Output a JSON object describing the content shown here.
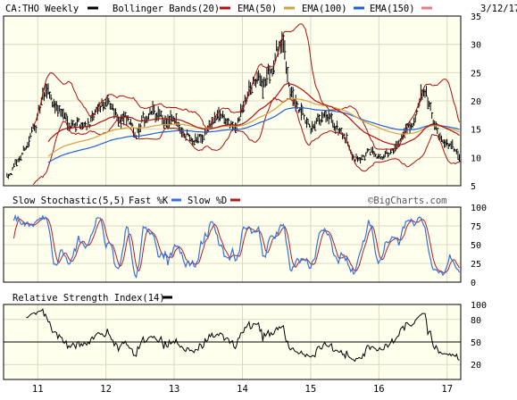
{
  "header": {
    "symbol_label": "CA:THO Weekly",
    "date": "3/12/17",
    "legend": [
      {
        "label": "Bollinger Bands(20)",
        "color": "#000000"
      },
      {
        "label": "EMA(50)",
        "color": "#b01010"
      },
      {
        "label": "EMA(100)",
        "color": "#d7a040"
      },
      {
        "label": "EMA(150)",
        "color": "#2060d0"
      }
    ],
    "legend_tail_color": "#e08080"
  },
  "colors": {
    "panel_bg": "#ffffee",
    "grid": "#d9d9c0",
    "price_bars": "#000000",
    "bollinger": "#aa1010",
    "ema50": "#b01010",
    "ema100": "#d7a040",
    "ema150": "#2060d0",
    "stoch_fast": "#3a6fd8",
    "stoch_slow": "#aa2020",
    "rsi": "#000000"
  },
  "chart_data": [
    {
      "type": "line",
      "title": "CA:THO Weekly",
      "ylim": [
        5,
        35
      ],
      "yticks": [
        5,
        10,
        15,
        20,
        25,
        30,
        35
      ],
      "x_ticks": [
        "11",
        "12",
        "13",
        "14",
        "15",
        "16",
        "17"
      ],
      "grid": true,
      "x_range": [
        2010.5,
        2017.2
      ],
      "price_anchors": [
        [
          2010.55,
          7.0
        ],
        [
          2010.7,
          9.0
        ],
        [
          2010.85,
          12.5
        ],
        [
          2010.95,
          15.5
        ],
        [
          2011.05,
          19.0
        ],
        [
          2011.15,
          21.5
        ],
        [
          2011.25,
          19.5
        ],
        [
          2011.35,
          18.0
        ],
        [
          2011.45,
          16.5
        ],
        [
          2011.55,
          17.0
        ],
        [
          2011.65,
          16.0
        ],
        [
          2011.75,
          16.5
        ],
        [
          2011.85,
          17.0
        ],
        [
          2011.95,
          19.0
        ],
        [
          2012.1,
          18.5
        ],
        [
          2012.25,
          17.0
        ],
        [
          2012.35,
          15.5
        ],
        [
          2012.45,
          14.5
        ],
        [
          2012.6,
          17.0
        ],
        [
          2012.7,
          18.0
        ],
        [
          2012.8,
          16.5
        ],
        [
          2012.95,
          16.0
        ],
        [
          2013.05,
          15.0
        ],
        [
          2013.2,
          14.5
        ],
        [
          2013.35,
          14.0
        ],
        [
          2013.5,
          15.5
        ],
        [
          2013.7,
          17.5
        ],
        [
          2013.85,
          15.0
        ],
        [
          2013.95,
          16.5
        ],
        [
          2014.05,
          20.0
        ],
        [
          2014.15,
          23.0
        ],
        [
          2014.3,
          23.5
        ],
        [
          2014.45,
          26.0
        ],
        [
          2014.55,
          30.0
        ],
        [
          2014.62,
          28.0
        ],
        [
          2014.68,
          24.0
        ],
        [
          2014.75,
          20.0
        ],
        [
          2014.85,
          17.0
        ],
        [
          2014.95,
          15.0
        ],
        [
          2015.05,
          14.5
        ],
        [
          2015.2,
          16.5
        ],
        [
          2015.35,
          15.0
        ],
        [
          2015.45,
          14.5
        ],
        [
          2015.55,
          12.0
        ],
        [
          2015.65,
          10.5
        ],
        [
          2015.75,
          10.0
        ],
        [
          2015.85,
          10.5
        ],
        [
          2015.95,
          11.0
        ],
        [
          2016.05,
          10.5
        ],
        [
          2016.15,
          10.5
        ],
        [
          2016.25,
          11.0
        ],
        [
          2016.35,
          14.0
        ],
        [
          2016.45,
          16.0
        ],
        [
          2016.55,
          17.5
        ],
        [
          2016.62,
          20.0
        ],
        [
          2016.7,
          19.0
        ],
        [
          2016.78,
          16.0
        ],
        [
          2016.88,
          14.0
        ],
        [
          2016.98,
          13.0
        ],
        [
          2017.08,
          11.5
        ],
        [
          2017.18,
          10.3
        ]
      ],
      "series": [
        {
          "name": "Bollinger Bands(20)",
          "kind": "band"
        },
        {
          "name": "EMA(50)",
          "period": 50
        },
        {
          "name": "EMA(100)",
          "period": 100
        },
        {
          "name": "EMA(150)",
          "period": 150
        }
      ]
    },
    {
      "type": "line",
      "title": "Slow Stochastic(5,5)",
      "legend": [
        "Fast %K",
        "Slow %D"
      ],
      "ylim": [
        0,
        100
      ],
      "yticks": [
        0,
        25,
        50,
        75,
        100
      ],
      "x_ticks": [
        "11",
        "12",
        "13",
        "14",
        "15",
        "16",
        "17"
      ]
    },
    {
      "type": "line",
      "title": "Relative Strength Index(14)",
      "ylim": [
        0,
        100
      ],
      "yticks": [
        20,
        50,
        80,
        100
      ],
      "x_ticks": [
        "11",
        "12",
        "13",
        "14",
        "15",
        "16",
        "17"
      ],
      "reference_line": 50
    }
  ],
  "panels": {
    "stoch": {
      "title": "Slow Stochastic(5,5)",
      "fast_label": "Fast %K",
      "slow_label": "Slow %D",
      "watermark": "©BigCharts.com"
    },
    "rsi": {
      "title": "Relative Strength Index(14)"
    }
  }
}
